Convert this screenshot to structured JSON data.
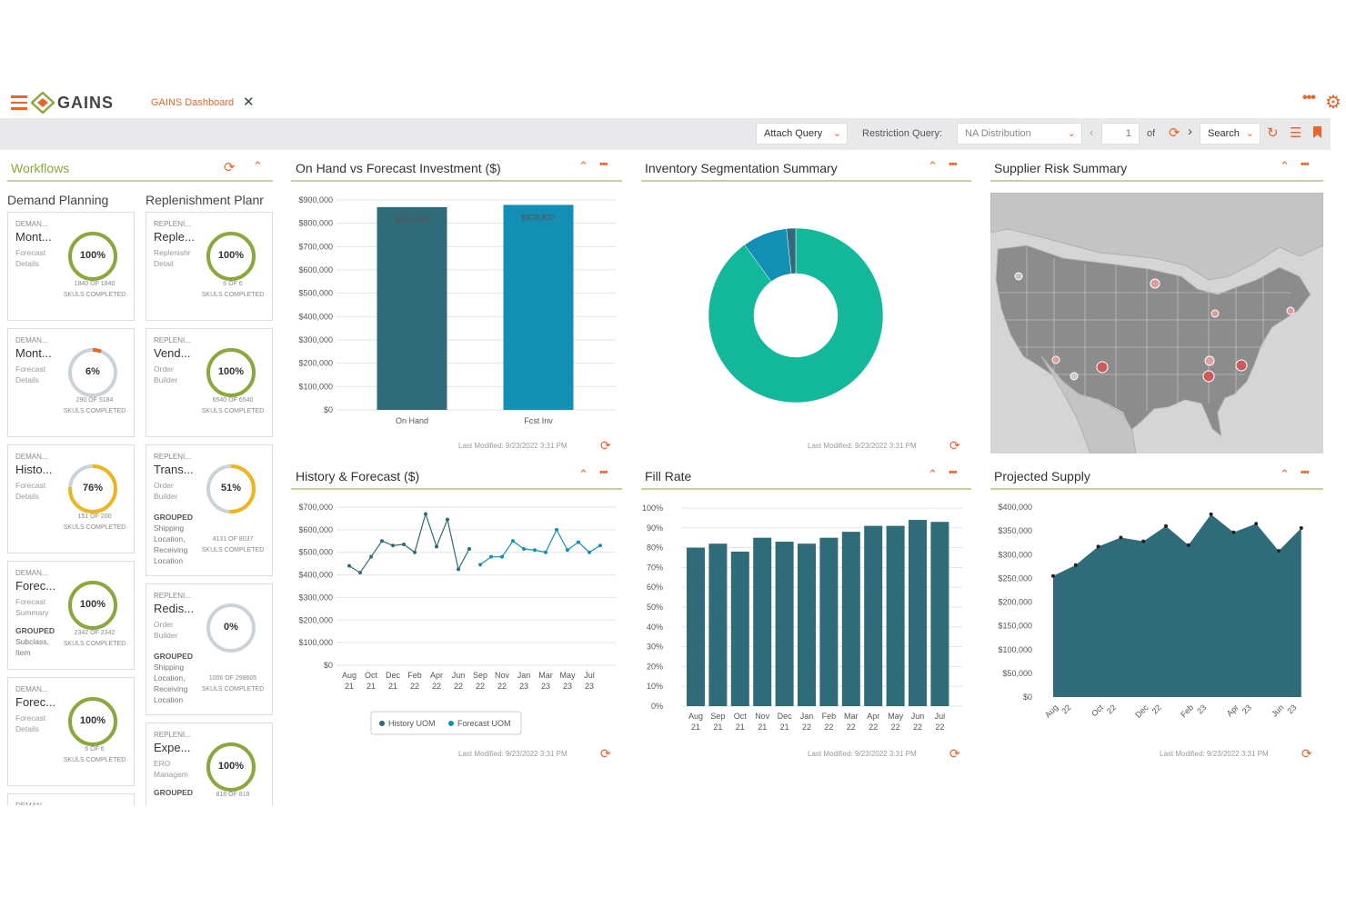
{
  "app": {
    "brand": "GAINS",
    "tab_title": "GAINS Dashboard"
  },
  "toolbar": {
    "attach_query": "Attach Query",
    "restriction_label": "Restriction Query:",
    "restriction_value": "NA Distribution",
    "page": "1",
    "of": "of",
    "search": "Search"
  },
  "workflows": {
    "title": "Workflows",
    "columns": [
      {
        "title": "Demand Planning",
        "cards": [
          {
            "t1": "DEMAN...",
            "t2": "Mont...",
            "t3": "Forecast Details",
            "pct": 100,
            "pct_label": "100%",
            "count": "1840 OF 1840",
            "status": "SKULS COMPLETED",
            "grouped": false
          },
          {
            "t1": "DEMAN...",
            "t2": "Mont...",
            "t3": "Forecast Details",
            "pct": 6,
            "pct_label": "6%",
            "count": "290 OF 5184",
            "status": "SKULS COMPLETED",
            "grouped": false
          },
          {
            "t1": "DEMAN...",
            "t2": "Histo...",
            "t3": "Forecast Details",
            "pct": 76,
            "pct_label": "76%",
            "count": "151 OF 200",
            "status": "SKULS COMPLETED",
            "grouped": false
          },
          {
            "t1": "DEMAN...",
            "t2": "Forec...",
            "t3": "Forecast Summary",
            "pct": 100,
            "pct_label": "100%",
            "count": "2342 OF 2342",
            "status": "SKULS COMPLETED",
            "grouped": true,
            "grouped_label": "GROUPED",
            "grouped_text": "Subclass, Item"
          },
          {
            "t1": "DEMAN...",
            "t2": "Forec...",
            "t3": "Forecast Details",
            "pct": 100,
            "pct_label": "100%",
            "count": "6 OF 6",
            "status": "SKULS COMPLETED",
            "grouped": false
          },
          {
            "t1": "DEMAN...",
            "t2": "",
            "t3": "",
            "pct": 0,
            "pct_label": "",
            "count": "",
            "status": "",
            "grouped": false
          }
        ]
      },
      {
        "title": "Replenishment Planr",
        "cards": [
          {
            "t1": "REPLENI...",
            "t2": "Reple...",
            "t3": "Replenishr Detail",
            "pct": 100,
            "pct_label": "100%",
            "count": "6 OF 6",
            "status": "SKULS COMPLETED",
            "grouped": false
          },
          {
            "t1": "REPLENI...",
            "t2": "Vend...",
            "t3": "Order Builder",
            "pct": 100,
            "pct_label": "100%",
            "count": "6540 OF 6540",
            "status": "SKULS COMPLETED",
            "grouped": false
          },
          {
            "t1": "REPLENI...",
            "t2": "Trans...",
            "t3": "Order Builder",
            "pct": 51,
            "pct_label": "51%",
            "count": "4131 OF 8037",
            "status": "SKULS COMPLETED",
            "grouped": true,
            "grouped_label": "GROUPED",
            "grouped_text": "Shipping Location, Receiving Location"
          },
          {
            "t1": "REPLENI...",
            "t2": "Redis...",
            "t3": "Order Builder",
            "pct": 0,
            "pct_label": "0%",
            "count": "1006 OF 298605",
            "status": "SKULS COMPLETED",
            "grouped": true,
            "grouped_label": "GROUPED",
            "grouped_text": "Shipping Location, Receiving Location"
          },
          {
            "t1": "REPLENI...",
            "t2": "Expe...",
            "t3": "ERO Managem",
            "pct": 100,
            "pct_label": "100%",
            "count": "818 OF 818",
            "status": "",
            "grouped": true,
            "grouped_label": "GROUPED",
            "grouped_text": ""
          }
        ]
      }
    ]
  },
  "panels": {
    "onhand": {
      "title": "On Hand vs Forecast Investment ($)",
      "last_modified": "Last Modified: 9/23/2022 3:31 PM"
    },
    "segmentation": {
      "title": "Inventory Segmentation Summary",
      "last_modified": "Last Modified: 9/23/2022 3:31 PM"
    },
    "supplier": {
      "title": "Supplier Risk Summary"
    },
    "history": {
      "title": "History & Forecast ($)",
      "last_modified": "Last Modified: 9/23/2022 3:31 PM"
    },
    "fillrate": {
      "title": "Fill Rate",
      "last_modified": "Last Modified: 9/23/2022 3:31 PM"
    },
    "projected": {
      "title": "Projected Supply",
      "last_modified": "Last Modified: 9/23/2022 3:31 PM"
    }
  },
  "colors": {
    "accent": "#e8652b",
    "teal_dark": "#2f6b78",
    "teal": "#138fb5",
    "green": "#13b89a",
    "ring_green": "#8aa83b",
    "ring_yellow": "#f0b51d"
  },
  "chart_data": [
    {
      "type": "bar",
      "title": "On Hand vs Forecast Investment ($)",
      "categories": [
        "On Hand",
        "Fcst Inv"
      ],
      "values": [
        869358,
        878837
      ],
      "value_labels": [
        "$869,358",
        "$878,837"
      ],
      "ylim": [
        0,
        900000
      ],
      "yticks": [
        "$0",
        "$100,000",
        "$200,000",
        "$300,000",
        "$400,000",
        "$500,000",
        "$600,000",
        "$700,000",
        "$800,000",
        "$900,000"
      ],
      "colors": [
        "#2f6b78",
        "#138fb5"
      ],
      "grid": true
    },
    {
      "type": "pie",
      "title": "Inventory Segmentation Summary",
      "values": [
        0.9,
        0.083,
        0.017
      ],
      "colors": [
        "#13b89a",
        "#138fb5",
        "#2f6b78"
      ],
      "donut": true
    },
    {
      "type": "line",
      "title": "History & Forecast ($)",
      "ylim": [
        0,
        700000
      ],
      "yticks": [
        "$0",
        "$100,000",
        "$200,000",
        "$300,000",
        "$400,000",
        "$500,000",
        "$600,000",
        "$700,000"
      ],
      "xticks": [
        [
          "Aug",
          "21"
        ],
        [
          "Oct",
          "21"
        ],
        [
          "Dec",
          "21"
        ],
        [
          "Feb",
          "22"
        ],
        [
          "Apr",
          "22"
        ],
        [
          "Jun",
          "22"
        ],
        [
          "Sep",
          "22"
        ],
        [
          "Nov",
          "22"
        ],
        [
          "Jan",
          "23"
        ],
        [
          "Mar",
          "23"
        ],
        [
          "May",
          "23"
        ],
        [
          "Jul",
          "23"
        ]
      ],
      "series": [
        {
          "name": "History UOM",
          "color": "#2f6b78",
          "values": [
            440000,
            410000,
            480000,
            550000,
            530000,
            535000,
            500000,
            670000,
            525000,
            645000,
            425000,
            515000
          ]
        },
        {
          "name": "Forecast UOM",
          "color": "#138fb5",
          "values": [
            445000,
            480000,
            480000,
            550000,
            515000,
            510000,
            500000,
            600000,
            510000,
            545000,
            500000,
            530000
          ]
        }
      ],
      "legend": "bottom"
    },
    {
      "type": "bar",
      "title": "Fill Rate",
      "categories": [
        [
          "Aug",
          "21"
        ],
        [
          "Sep",
          "21"
        ],
        [
          "Oct",
          "21"
        ],
        [
          "Nov",
          "21"
        ],
        [
          "Dec",
          "21"
        ],
        [
          "Jan",
          "22"
        ],
        [
          "Feb",
          "22"
        ],
        [
          "Mar",
          "22"
        ],
        [
          "Apr",
          "22"
        ],
        [
          "May",
          "22"
        ],
        [
          "Jun",
          "22"
        ],
        [
          "Jul",
          "22"
        ]
      ],
      "values": [
        80,
        82,
        78,
        85,
        83,
        82,
        85,
        88,
        91,
        91,
        94,
        93
      ],
      "ylim": [
        0,
        100
      ],
      "yticks": [
        "0%",
        "10%",
        "20%",
        "30%",
        "40%",
        "50%",
        "60%",
        "70%",
        "80%",
        "90%",
        "100%"
      ],
      "colors": [
        "#2f6b78"
      ],
      "grid": true
    },
    {
      "type": "area",
      "title": "Projected Supply",
      "x": [
        "Aug 22",
        "Sep 22",
        "Oct 22",
        "Nov 22",
        "Dec 22",
        "Jan 23",
        "Feb 23",
        "Mar 23",
        "Apr 23",
        "May 23",
        "Jun 23",
        "Jul 23"
      ],
      "xticks": [
        [
          "Aug",
          "22"
        ],
        [
          "Oct",
          "22"
        ],
        [
          "Dec",
          "22"
        ],
        [
          "Feb",
          "23"
        ],
        [
          "Apr",
          "23"
        ],
        [
          "Jun",
          "23"
        ]
      ],
      "values": [
        255000,
        278000,
        317000,
        336000,
        328000,
        360000,
        320000,
        385000,
        347000,
        365000,
        308000,
        356000
      ],
      "ylim": [
        0,
        400000
      ],
      "yticks": [
        "$0",
        "$50,000",
        "$100,000",
        "$150,000",
        "$200,000",
        "$250,000",
        "$300,000",
        "$350,000",
        "$400,000"
      ],
      "colors": [
        "#2f6b78"
      ]
    }
  ]
}
